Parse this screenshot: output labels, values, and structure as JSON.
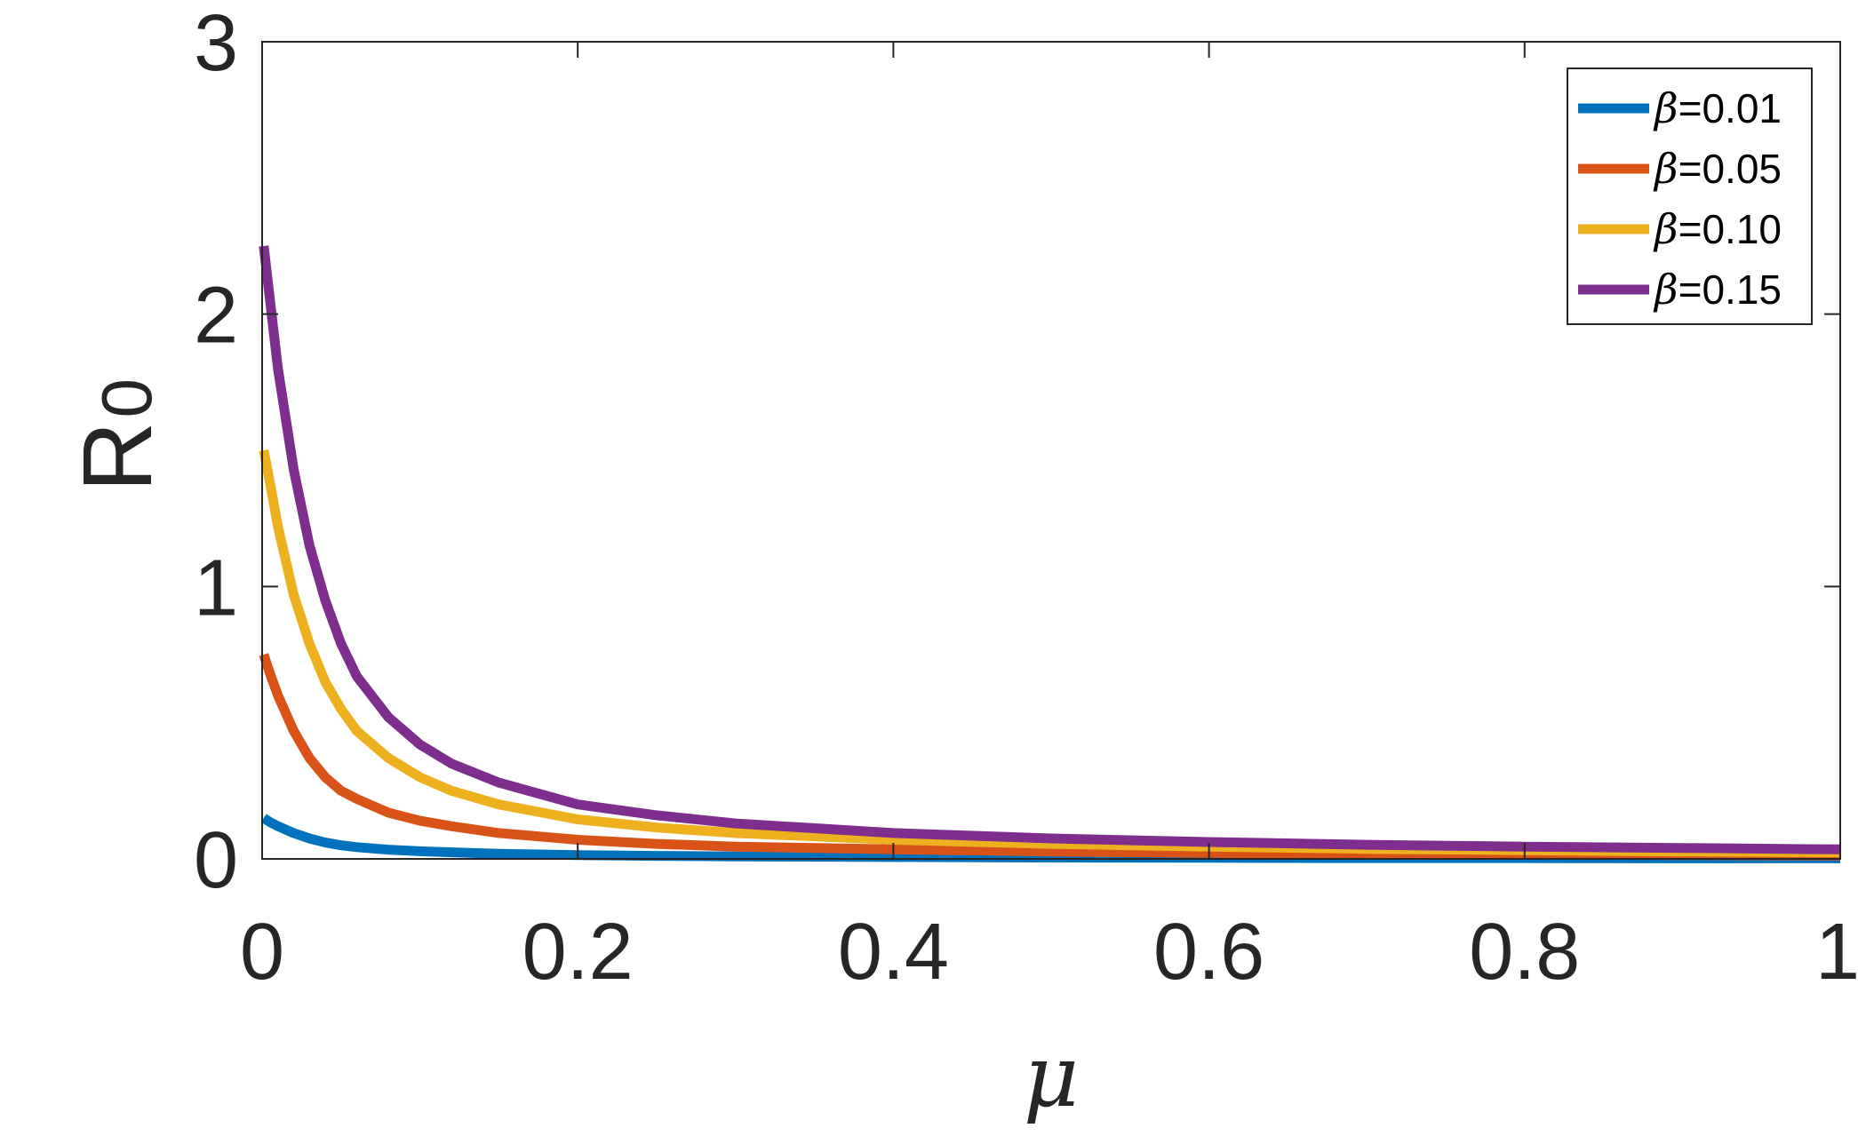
{
  "chart_data": {
    "type": "line",
    "title": "",
    "xlabel": "μ",
    "ylabel": "R",
    "ylabel_subscript": "0",
    "xlim": [
      0,
      1
    ],
    "ylim": [
      0,
      3
    ],
    "xticks": [
      0,
      0.2,
      0.4,
      0.6,
      0.8,
      1
    ],
    "xtick_labels": [
      "0",
      "0.2",
      "0.4",
      "0.6",
      "0.8",
      "1"
    ],
    "yticks": [
      0,
      1,
      2,
      3
    ],
    "ytick_labels": [
      "0",
      "1",
      "2",
      "3"
    ],
    "grid": false,
    "legend_position": "top-right",
    "x": [
      0.001,
      0.005,
      0.01,
      0.02,
      0.03,
      0.04,
      0.05,
      0.06,
      0.08,
      0.1,
      0.12,
      0.15,
      0.2,
      0.25,
      0.3,
      0.4,
      0.5,
      0.6,
      0.7,
      0.8,
      0.9,
      1.0
    ],
    "series": [
      {
        "name": "=0.01",
        "color": "#0072BD",
        "values": [
          0.15,
          0.135,
          0.12,
          0.095,
          0.075,
          0.06,
          0.05,
          0.043,
          0.034,
          0.028,
          0.024,
          0.019,
          0.014,
          0.011,
          0.009,
          0.007,
          0.005,
          0.004,
          0.003,
          0.003,
          0.002,
          0.002
        ]
      },
      {
        "name": "=0.05",
        "color": "#D95319",
        "values": [
          0.75,
          0.68,
          0.6,
          0.47,
          0.37,
          0.3,
          0.25,
          0.22,
          0.17,
          0.14,
          0.12,
          0.095,
          0.07,
          0.055,
          0.045,
          0.035,
          0.027,
          0.022,
          0.018,
          0.016,
          0.014,
          0.012
        ]
      },
      {
        "name": "=0.10",
        "color": "#EDB120",
        "values": [
          1.5,
          1.38,
          1.22,
          0.97,
          0.79,
          0.65,
          0.55,
          0.47,
          0.37,
          0.3,
          0.25,
          0.2,
          0.145,
          0.115,
          0.095,
          0.07,
          0.055,
          0.045,
          0.037,
          0.032,
          0.027,
          0.024
        ]
      },
      {
        "name": "=0.15",
        "color": "#7E2F8E",
        "values": [
          2.25,
          2.05,
          1.8,
          1.43,
          1.15,
          0.95,
          0.79,
          0.67,
          0.52,
          0.42,
          0.35,
          0.28,
          0.2,
          0.16,
          0.13,
          0.095,
          0.075,
          0.062,
          0.052,
          0.045,
          0.04,
          0.035
        ]
      }
    ],
    "legend_symbol": "β"
  }
}
